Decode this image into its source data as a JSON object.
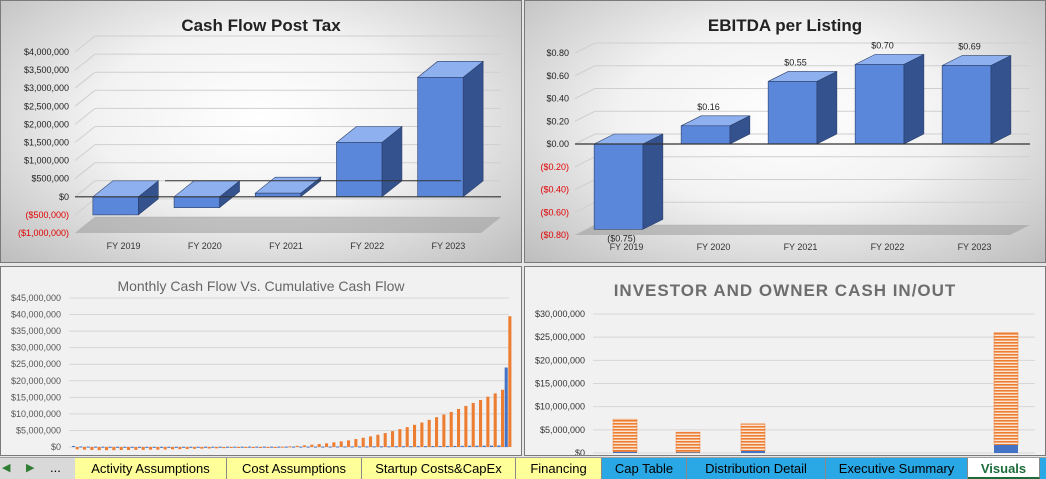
{
  "chart_data": [
    {
      "type": "bar",
      "title": "Cash Flow Post Tax",
      "categories": [
        "FY 2019",
        "FY 2020",
        "FY 2021",
        "FY 2022",
        "FY 2023"
      ],
      "values": [
        -500000,
        -300000,
        100000,
        1500000,
        3300000
      ],
      "yticks": [
        "$4,000,000",
        "$3,500,000",
        "$3,000,000",
        "$2,500,000",
        "$2,000,000",
        "$1,500,000",
        "$1,000,000",
        "$500,000",
        "$0",
        "($500,000)",
        "($1,000,000)"
      ],
      "ylim": [
        -1000000,
        4000000
      ]
    },
    {
      "type": "bar",
      "title": "EBITDA per Listing",
      "categories": [
        "FY 2019",
        "FY 2020",
        "FY 2021",
        "FY 2022",
        "FY 2023"
      ],
      "values": [
        -0.75,
        0.16,
        0.55,
        0.7,
        0.69
      ],
      "data_labels": [
        "($0.75)",
        "$0.16",
        "$0.55",
        "$0.70",
        "$0.69"
      ],
      "yticks": [
        "$0.80",
        "$0.60",
        "$0.40",
        "$0.20",
        "$0.00",
        "($0.20)",
        "($0.40)",
        "($0.60)",
        "($0.80)"
      ],
      "ylim": [
        -0.8,
        0.8
      ]
    },
    {
      "type": "bar",
      "title": "Monthly Cash Flow Vs. Cumulative Cash Flow",
      "yticks": [
        "$45,000,000",
        "$40,000,000",
        "$35,000,000",
        "$30,000,000",
        "$25,000,000",
        "$20,000,000",
        "$15,000,000",
        "$10,000,000",
        "$5,000,000",
        "$0"
      ],
      "ylim": [
        0,
        45000000
      ],
      "series": [
        {
          "color": "#4472c4",
          "values": [
            300000,
            150000,
            120000,
            100000,
            80000,
            60000,
            60000,
            50000,
            50000,
            50000,
            40000,
            40000,
            50000,
            50000,
            50000,
            60000,
            60000,
            60000,
            70000,
            70000,
            70000,
            80000,
            80000,
            80000,
            100000,
            100000,
            100000,
            110000,
            110000,
            110000,
            120000,
            120000,
            120000,
            130000,
            130000,
            140000,
            150000,
            160000,
            170000,
            180000,
            190000,
            200000,
            210000,
            220000,
            230000,
            240000,
            250000,
            260000,
            270000,
            280000,
            290000,
            300000,
            320000,
            340000,
            360000,
            380000,
            400000,
            420000,
            440000,
            24000000
          ]
        },
        {
          "color": "#ed7d31",
          "values": [
            -700000,
            -800000,
            -900000,
            -950000,
            -950000,
            -950000,
            -900000,
            -900000,
            -850000,
            -850000,
            -800000,
            -800000,
            -750000,
            -700000,
            -650000,
            -600000,
            -550000,
            -500000,
            -450000,
            -400000,
            -350000,
            -300000,
            -250000,
            -200000,
            -150000,
            -100000,
            -50000,
            0,
            100000,
            200000,
            350000,
            500000,
            700000,
            900000,
            1100000,
            1400000,
            1700000,
            2000000,
            2400000,
            2800000,
            3200000,
            3700000,
            4200000,
            4800000,
            5400000,
            6000000,
            6700000,
            7400000,
            8200000,
            9000000,
            9800000,
            10600000,
            11500000,
            12400000,
            13300000,
            14200000,
            15200000,
            16200000,
            17300000,
            39500000
          ]
        }
      ]
    },
    {
      "type": "bar",
      "title": "INVESTOR AND OWNER CASH IN/OUT",
      "yticks": [
        "$30,000,000",
        "$25,000,000",
        "$20,000,000",
        "$15,000,000",
        "$10,000,000",
        "$5,000,000",
        "$0"
      ],
      "ylim": [
        0,
        30000000
      ],
      "stacks": [
        {
          "blue": 300000,
          "orange": 7000000
        },
        {
          "blue": 200000,
          "orange": 4300000
        },
        {
          "blue": 500000,
          "orange": 5800000
        },
        {
          "blue": 0,
          "orange": 0
        },
        {
          "blue": 0,
          "orange": 0
        },
        {
          "blue": 1800000,
          "orange": 24200000
        }
      ]
    }
  ],
  "tabs": {
    "nav_more": "...",
    "items": [
      {
        "label": "Activity Assumptions"
      },
      {
        "label": "Cost Assumptions"
      },
      {
        "label": "Startup Costs&CapEx"
      },
      {
        "label": "Financing"
      },
      {
        "label": "Cap Table"
      },
      {
        "label": "Distribution Detail"
      },
      {
        "label": "Executive Summary"
      },
      {
        "label": "Visuals"
      }
    ]
  }
}
